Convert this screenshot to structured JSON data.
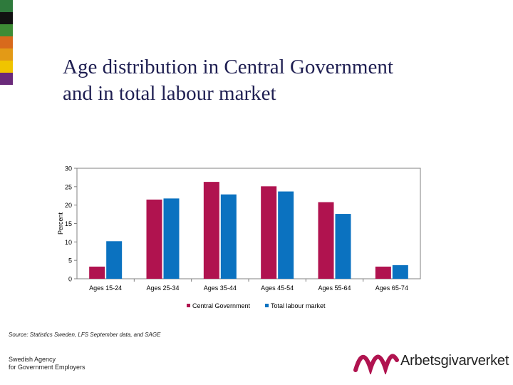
{
  "title": {
    "line1": "Age distribution in Central Government",
    "line2": "and in total labour market"
  },
  "colors": {
    "stripes": [
      "#2e7a3c",
      "#111111",
      "#3d8c35",
      "#d86a1c",
      "#e39a16",
      "#f0c400",
      "#6a2a7a"
    ],
    "series_central": "#b0134f",
    "series_total": "#0b72c0",
    "title": "#1f1f52",
    "logo": "#b0134f"
  },
  "chart_data": {
    "type": "bar",
    "title": "Age distribution in Central Government and in total labour market",
    "categories": [
      "Ages 15-24",
      "Ages 25-34",
      "Ages 35-44",
      "Ages 45-54",
      "Ages 55-64",
      "Ages 65-74"
    ],
    "series": [
      {
        "name": "Central Government",
        "values": [
          3.3,
          21.5,
          26.3,
          25.1,
          20.8,
          3.3
        ]
      },
      {
        "name": "Total labour market",
        "values": [
          10.2,
          21.8,
          22.9,
          23.7,
          17.6,
          3.7
        ]
      }
    ],
    "xlabel": "",
    "ylabel": "Percent",
    "ylim": [
      0,
      30
    ],
    "yticks": [
      0,
      5,
      10,
      15,
      20,
      25,
      30
    ],
    "grid": false,
    "legend": "bottom"
  },
  "footer": {
    "source": "Source: Statistics Sweden, LFS September data, and SAGE",
    "agency_line1": "Swedish Agency",
    "agency_line2": "for Government Employers",
    "logo_text": "Arbetsgivarverket"
  }
}
